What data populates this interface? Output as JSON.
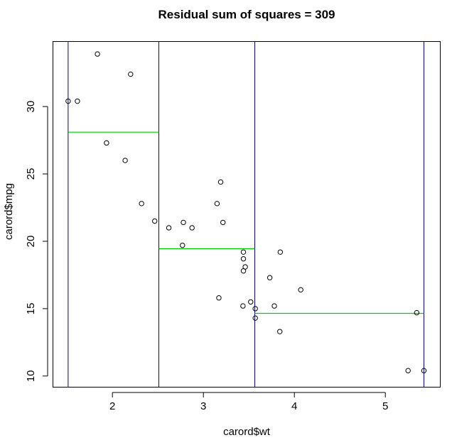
{
  "chart_data": {
    "type": "scatter",
    "title": "Residual sum of squares = 309",
    "xlabel": "carord$wt",
    "ylabel": "carord$mpg",
    "xlim": [
      1.35,
      5.6
    ],
    "ylim": [
      9.2,
      34.8
    ],
    "xticks": [
      2,
      3,
      4,
      5
    ],
    "yticks": [
      10,
      15,
      20,
      25,
      30
    ],
    "grid": false,
    "points": [
      {
        "x": 1.513,
        "y": 30.4
      },
      {
        "x": 1.615,
        "y": 30.4
      },
      {
        "x": 1.835,
        "y": 33.9
      },
      {
        "x": 1.935,
        "y": 27.3
      },
      {
        "x": 2.14,
        "y": 26.0
      },
      {
        "x": 2.2,
        "y": 32.4
      },
      {
        "x": 2.32,
        "y": 22.8
      },
      {
        "x": 2.465,
        "y": 21.5
      },
      {
        "x": 2.62,
        "y": 21.0
      },
      {
        "x": 2.77,
        "y": 19.7
      },
      {
        "x": 2.78,
        "y": 21.4
      },
      {
        "x": 2.875,
        "y": 21.0
      },
      {
        "x": 3.15,
        "y": 22.8
      },
      {
        "x": 3.17,
        "y": 15.8
      },
      {
        "x": 3.19,
        "y": 24.4
      },
      {
        "x": 3.215,
        "y": 21.4
      },
      {
        "x": 3.435,
        "y": 15.2
      },
      {
        "x": 3.44,
        "y": 18.7
      },
      {
        "x": 3.44,
        "y": 19.2
      },
      {
        "x": 3.44,
        "y": 17.8
      },
      {
        "x": 3.46,
        "y": 18.1
      },
      {
        "x": 3.52,
        "y": 15.5
      },
      {
        "x": 3.57,
        "y": 14.3
      },
      {
        "x": 3.57,
        "y": 15.0
      },
      {
        "x": 3.73,
        "y": 17.3
      },
      {
        "x": 3.78,
        "y": 15.2
      },
      {
        "x": 3.84,
        "y": 13.3
      },
      {
        "x": 3.845,
        "y": 19.2
      },
      {
        "x": 4.07,
        "y": 16.4
      },
      {
        "x": 5.25,
        "y": 10.4
      },
      {
        "x": 5.345,
        "y": 14.7
      },
      {
        "x": 5.424,
        "y": 10.4
      }
    ],
    "split_lines": [
      {
        "x": 1.513,
        "color": "#00008b"
      },
      {
        "x": 2.51,
        "color": "#00008b"
      },
      {
        "x": 3.565,
        "color": "#00008b"
      },
      {
        "x": 5.424,
        "color": "#00008b"
      }
    ],
    "segment_means": [
      {
        "x0": 1.513,
        "x1": 2.51,
        "y": 28.1,
        "color": "#00cc00"
      },
      {
        "x0": 2.51,
        "x1": 3.565,
        "y": 19.45,
        "color": "#00cc00"
      },
      {
        "x0": 3.565,
        "x1": 5.424,
        "y": 14.65,
        "color": "#00cc00"
      }
    ]
  }
}
